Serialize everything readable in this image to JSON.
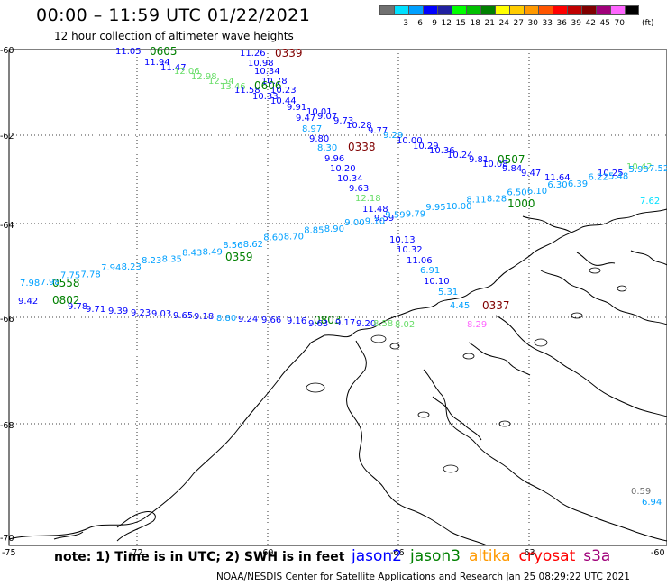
{
  "header": {
    "title": "00:00 – 11:59 UTC 01/22/2021",
    "subtitle": "12 hour collection of altimeter wave heights"
  },
  "scale": {
    "colors": [
      "#707070",
      "#00e0ff",
      "#00a0ff",
      "#0000ff",
      "#2020a0",
      "#00ff00",
      "#00c000",
      "#008000",
      "#ffff00",
      "#ffcc00",
      "#ff9900",
      "#ff5500",
      "#ff0000",
      "#c00000",
      "#800000",
      "#a0007a",
      "#ff66ff",
      "#000000"
    ],
    "labels": [
      "",
      "3",
      "6",
      "9",
      "12",
      "15",
      "18",
      "21",
      "24",
      "27",
      "30",
      "33",
      "36",
      "39",
      "42",
      "45",
      "70"
    ],
    "unit": "(ft)"
  },
  "axes": {
    "lat_labels": [
      "-60",
      "-62",
      "-64",
      "-66",
      "-68",
      "-70"
    ],
    "lon_labels": [
      "-75",
      "-72",
      "-69",
      "-66",
      "-63",
      "-60"
    ]
  },
  "tracks": {
    "track_ne": {
      "color": "#00a0ff",
      "points": [
        "7.98",
        "7.98",
        "7.75",
        "7.78",
        "7.94",
        "8.23",
        "8.23",
        "8.35",
        "8.43",
        "8.49",
        "8.56",
        "8.62",
        "8.60",
        "8.70",
        "8.85",
        "8.90",
        "9.00",
        "9.10",
        "9.59",
        "9.79",
        "9.95",
        "10.00",
        "8.11",
        "8.28",
        "6.50",
        "6.10",
        "6.30",
        "6.39",
        "6.22",
        "5.48",
        "5.93",
        "7.52"
      ]
    }
  },
  "labels": {
    "t0605": "0605",
    "t0339": "0339",
    "t0606": "0606",
    "t0338": "0338",
    "t0507": "0507",
    "t1000": "1000",
    "t0359": "0359",
    "t0558": "0558",
    "t0802": "0802",
    "t0803": "0803",
    "t0337": "0337",
    "val_1105": "11.05",
    "val_1194": "11.94",
    "val_1147": "11.47",
    "val_1126": "11.26",
    "val_1098": "10.98",
    "val_1034a": "10.34",
    "val_1078": "10.78",
    "val_1158": "11.58",
    "val_1023": "10.23",
    "val_1033": "10.33",
    "val_1044": "10.44",
    "val_991": "9.91",
    "val_1001": "10.01",
    "val_947": "9.47",
    "val_907": "9.07",
    "val_973": "9.73",
    "val_1028": "10.28",
    "val_977": "9.77",
    "val_897": "8.97",
    "val_980": "9.80",
    "val_830": "8.30",
    "val_1000b": "10.00",
    "val_1029": "10.29",
    "val_1036": "10.36",
    "val_1024": "10.24",
    "val_981": "9.81",
    "val_1008": "10.08",
    "val_984": "9.84",
    "val_947b": "9.47",
    "val_1164": "11.64",
    "val_1025": "10.25",
    "val_1042": "10.42",
    "val_996": "9.96",
    "val_1020": "10.20",
    "val_1034b": "10.34",
    "val_963": "9.63",
    "val_1218": "12.18",
    "val_1148": "11.48",
    "val_959": "9.59",
    "val_1013": "10.13",
    "val_1032": "10.32",
    "val_1106": "11.06",
    "val_691": "6.91",
    "val_1010": "10.10",
    "val_531": "5.31",
    "val_445": "4.45",
    "val_829": "8.29",
    "val_942": "9.42",
    "val_978": "9.78",
    "val_971": "9.71",
    "val_939": "9.39",
    "val_923": "9.23",
    "val_903": "9.03",
    "val_965": "9.65",
    "val_918": "9.18",
    "val_880": "8.80",
    "val_924": "9.24",
    "val_966": "9.66",
    "val_916": "9.16",
    "val_963b": "9.63",
    "val_917": "9.17",
    "val_920": "9.20",
    "val_858": "8.58",
    "val_802": "8.02",
    "val_1206": "12.06",
    "val_1298": "12.98",
    "val_1254": "12.54",
    "val_1346": "13.46",
    "val_059": "0.59",
    "val_694": "6.94",
    "val_829b": "9.29",
    "val_762": "7.62"
  },
  "footer": {
    "note": "note:  1) Time is in UTC;  2) SWH is in feet",
    "credit": "NOAA/NESDIS Center for Satellite Applications and Research    Jan 25 08:29:22 UTC 2021",
    "legend": [
      {
        "name": "jason2",
        "color": "#0000ff"
      },
      {
        "name": "jason3",
        "color": "#008000"
      },
      {
        "name": "altika",
        "color": "#ff9900"
      },
      {
        "name": "cryosat",
        "color": "#ff0000"
      },
      {
        "name": "s3a",
        "color": "#a0007a"
      }
    ]
  }
}
